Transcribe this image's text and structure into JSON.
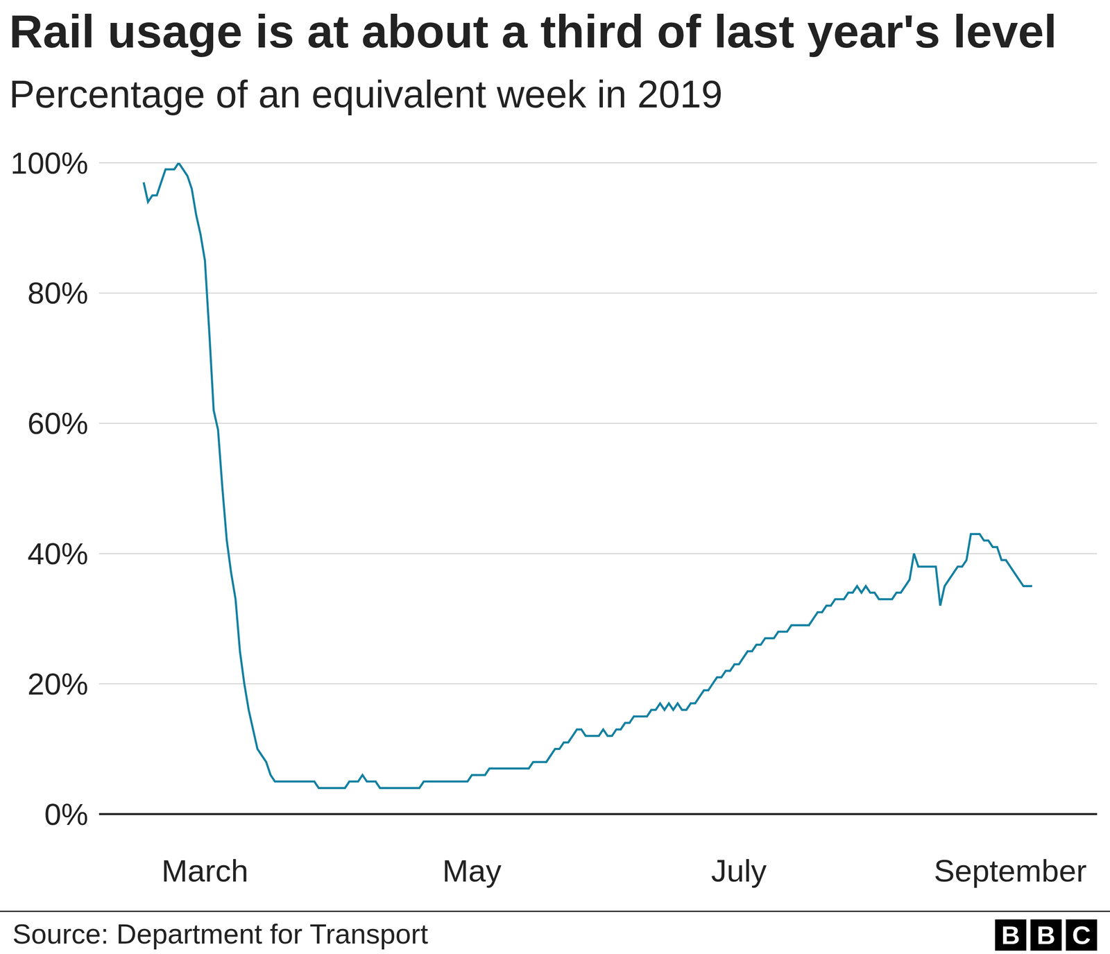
{
  "chart_data": {
    "type": "line",
    "title": "Rail usage is at about a third of last year's level",
    "subtitle": "Percentage of an equivalent week in 2019",
    "source": "Source: Department for Transport",
    "logo": "BBC",
    "color": "#1380a1",
    "grid": true,
    "ylim": [
      0,
      100
    ],
    "yticks": [
      {
        "value": 0,
        "label": "0%"
      },
      {
        "value": 20,
        "label": "20%"
      },
      {
        "value": 40,
        "label": "40%"
      },
      {
        "value": 60,
        "label": "60%"
      },
      {
        "value": 80,
        "label": "80%"
      },
      {
        "value": 100,
        "label": "100%"
      }
    ],
    "categories": [
      null,
      null,
      null,
      null,
      null,
      null,
      null,
      null,
      null,
      null,
      null,
      null,
      null,
      null,
      "March",
      null,
      null,
      null,
      null,
      null,
      null,
      null,
      null,
      null,
      null,
      null,
      null,
      null,
      null,
      null,
      null,
      null,
      null,
      null,
      null,
      null,
      null,
      null,
      null,
      null,
      null,
      null,
      null,
      null,
      null,
      null,
      null,
      null,
      null,
      null,
      null,
      null,
      null,
      null,
      null,
      null,
      null,
      null,
      null,
      null,
      null,
      null,
      null,
      null,
      null,
      null,
      null,
      null,
      null,
      null,
      null,
      null,
      null,
      null,
      null,
      "May",
      null,
      null,
      null,
      null,
      null,
      null,
      null,
      null,
      null,
      null,
      null,
      null,
      null,
      null,
      null,
      null,
      null,
      null,
      null,
      null,
      null,
      null,
      null,
      null,
      null,
      null,
      null,
      null,
      null,
      null,
      null,
      null,
      null,
      null,
      null,
      null,
      null,
      null,
      null,
      null,
      null,
      null,
      null,
      null,
      null,
      null,
      null,
      null,
      null,
      null,
      null,
      null,
      null,
      null,
      null,
      null,
      null,
      null,
      null,
      null,
      "July",
      null,
      null,
      null,
      null,
      null,
      null,
      null,
      null,
      null,
      null,
      null,
      null,
      null,
      null,
      null,
      null,
      null,
      null,
      null,
      null,
      null,
      null,
      null,
      null,
      null,
      null,
      null,
      null,
      null,
      null,
      null,
      null,
      null,
      null,
      null,
      null,
      null,
      null,
      null,
      null,
      null,
      null,
      null,
      null,
      null,
      null,
      null,
      null,
      null,
      null,
      null,
      null,
      null,
      null,
      null,
      null,
      null,
      null,
      null,
      null,
      null,
      "September",
      null,
      null,
      null,
      null,
      null
    ],
    "values": [
      97,
      94,
      95,
      95,
      97,
      99,
      99,
      99,
      100,
      99,
      98,
      96,
      92,
      89,
      85,
      74,
      62,
      59,
      50,
      42,
      37,
      33,
      25,
      20,
      16,
      13,
      10,
      9,
      8,
      6,
      5,
      5,
      5,
      5,
      5,
      5,
      5,
      5,
      5,
      5,
      4,
      4,
      4,
      4,
      4,
      4,
      4,
      5,
      5,
      5,
      6,
      5,
      5,
      5,
      4,
      4,
      4,
      4,
      4,
      4,
      4,
      4,
      4,
      4,
      5,
      5,
      5,
      5,
      5,
      5,
      5,
      5,
      5,
      5,
      5,
      6,
      6,
      6,
      6,
      7,
      7,
      7,
      7,
      7,
      7,
      7,
      7,
      7,
      7,
      8,
      8,
      8,
      8,
      9,
      10,
      10,
      11,
      11,
      12,
      13,
      13,
      12,
      12,
      12,
      12,
      13,
      12,
      12,
      13,
      13,
      14,
      14,
      15,
      15,
      15,
      15,
      16,
      16,
      17,
      16,
      17,
      16,
      17,
      16,
      16,
      17,
      17,
      18,
      19,
      19,
      20,
      21,
      21,
      22,
      22,
      23,
      23,
      24,
      25,
      25,
      26,
      26,
      27,
      27,
      27,
      28,
      28,
      28,
      29,
      29,
      29,
      29,
      29,
      30,
      31,
      31,
      32,
      32,
      33,
      33,
      33,
      34,
      34,
      35,
      34,
      35,
      34,
      34,
      33,
      33,
      33,
      33,
      34,
      34,
      35,
      36,
      40,
      38,
      38,
      38,
      38,
      38,
      32,
      35,
      36,
      37,
      38,
      38,
      39,
      43,
      43,
      43,
      42,
      42,
      41,
      41,
      39,
      39,
      38,
      37,
      36,
      35,
      35,
      35
    ]
  }
}
